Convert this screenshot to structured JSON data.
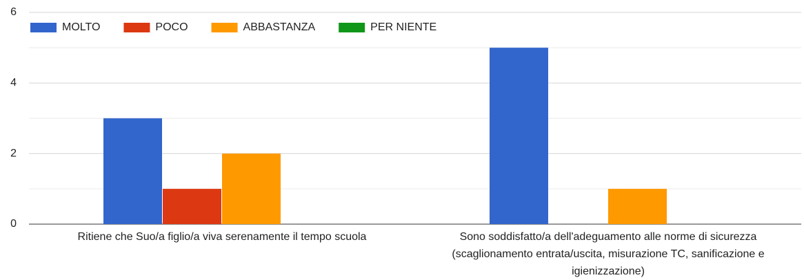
{
  "chart_data": {
    "type": "bar",
    "categories": [
      "Ritiene che Suo/a figlio/a viva serenamente il tempo scuola",
      "Sono soddisfatto/a dell'adeguamento alle norme di sicurezza (scaglionamento entrata/uscita, misurazione TC, sanificazione e igienizzazione)"
    ],
    "series": [
      {
        "name": "MOLTO",
        "color": "#3366cc",
        "values": [
          3,
          5
        ]
      },
      {
        "name": "POCO",
        "color": "#dc3912",
        "values": [
          1,
          0
        ]
      },
      {
        "name": "ABBASTANZA",
        "color": "#ff9900",
        "values": [
          2,
          1
        ]
      },
      {
        "name": "PER NIENTE",
        "color": "#109618",
        "values": [
          0,
          0
        ]
      }
    ],
    "ylim": [
      0,
      6
    ],
    "yticks": [
      0,
      2,
      4,
      6
    ],
    "grid": true,
    "legend": "top"
  }
}
